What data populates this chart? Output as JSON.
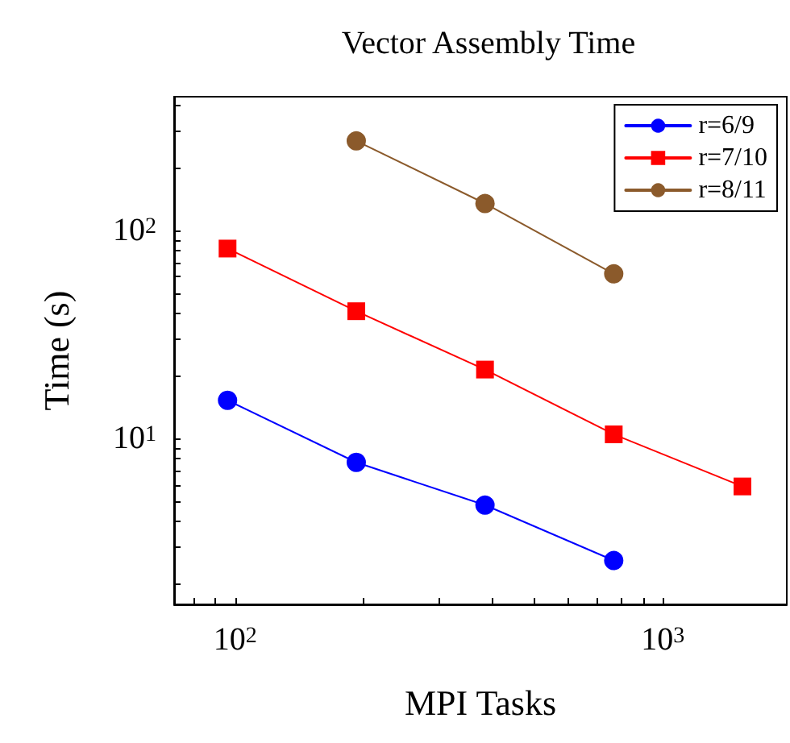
{
  "chart_data": {
    "type": "line",
    "title": "Vector Assembly Time",
    "xlabel": "MPI Tasks",
    "ylabel": "Time (s)",
    "log": "xy",
    "grid": false,
    "legend": "top right",
    "line_style": "solid",
    "xlim": [
      72,
      1950
    ],
    "xticks": [
      {
        "value": 80,
        "label": null
      },
      {
        "value": 90,
        "label": null
      },
      {
        "value": 100,
        "label": "10$^{2}$"
      },
      {
        "value": 200,
        "label": null
      },
      {
        "value": 300,
        "label": null
      },
      {
        "value": 400,
        "label": null
      },
      {
        "value": 500,
        "label": null
      },
      {
        "value": 600,
        "label": null
      },
      {
        "value": 700,
        "label": null
      },
      {
        "value": 800,
        "label": null
      },
      {
        "value": 900,
        "label": null
      },
      {
        "value": 1000,
        "label": "10$^{3}$"
      }
    ],
    "ylim": [
      1.6,
      440
    ],
    "yticks": [
      {
        "value": 2,
        "label": null
      },
      {
        "value": 3,
        "label": null
      },
      {
        "value": 4,
        "label": null
      },
      {
        "value": 5,
        "label": null
      },
      {
        "value": 6,
        "label": null
      },
      {
        "value": 7,
        "label": null
      },
      {
        "value": 8,
        "label": null
      },
      {
        "value": 9,
        "label": null
      },
      {
        "value": 10,
        "label": "10$^{1}$"
      },
      {
        "value": 20,
        "label": null
      },
      {
        "value": 30,
        "label": null
      },
      {
        "value": 40,
        "label": null
      },
      {
        "value": 50,
        "label": null
      },
      {
        "value": 60,
        "label": null
      },
      {
        "value": 70,
        "label": null
      },
      {
        "value": 80,
        "label": null
      },
      {
        "value": 90,
        "label": null
      },
      {
        "value": 100,
        "label": "10$^{2}$"
      },
      {
        "value": 200,
        "label": null
      },
      {
        "value": 300,
        "label": null
      },
      {
        "value": 400,
        "label": null
      }
    ],
    "series": [
      {
        "name": "r=6/9",
        "color": "#0000ff",
        "marker": "circle",
        "x": [
          96,
          192,
          384,
          768
        ],
        "values": [
          15.3,
          7.7,
          4.8,
          2.6
        ]
      },
      {
        "name": "r=7/10",
        "color": "#ff0000",
        "marker": "square",
        "x": [
          96,
          192,
          384,
          768,
          1536
        ],
        "values": [
          82,
          41,
          21.5,
          10.5,
          5.9
        ]
      },
      {
        "name": "r=8/11",
        "color": "#8b5a2b",
        "marker": "circle",
        "x": [
          192,
          384,
          768
        ],
        "values": [
          270,
          135,
          62
        ]
      }
    ]
  }
}
